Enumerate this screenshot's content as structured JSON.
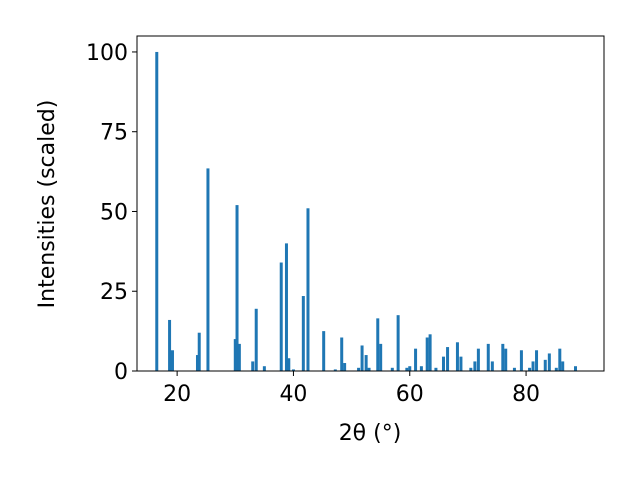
{
  "chart_data": {
    "type": "bar",
    "x_label": "2θ (°)",
    "y_label": "Intensities (scaled)",
    "color": "#1f77b4",
    "x": [
      16.5,
      18.7,
      19.2,
      23.5,
      23.8,
      25.3,
      30.0,
      30.3,
      30.7,
      33.0,
      33.6,
      35.0,
      37.9,
      38.8,
      39.2,
      40.0,
      41.7,
      42.5,
      45.2,
      47.2,
      48.3,
      48.8,
      51.2,
      51.8,
      52.5,
      53.0,
      54.5,
      55.0,
      57.0,
      58.0,
      59.5,
      60.0,
      61.0,
      62.0,
      63.0,
      63.5,
      64.5,
      65.8,
      66.5,
      68.2,
      68.8,
      70.5,
      71.2,
      71.8,
      73.5,
      74.2,
      76.0,
      76.5,
      78.0,
      79.2,
      80.6,
      81.2,
      81.8,
      83.3,
      84.0,
      85.2,
      85.8,
      86.3,
      88.5
    ],
    "values": [
      100,
      16,
      6.5,
      5,
      12,
      63.5,
      10,
      52,
      8.5,
      3,
      19.5,
      1.5,
      34,
      40,
      4,
      0.5,
      23.5,
      51,
      12.5,
      0.5,
      10.5,
      2.5,
      1,
      8,
      5,
      1,
      16.5,
      8.5,
      1,
      17.5,
      1,
      1.5,
      7,
      1.5,
      10.5,
      11.5,
      1,
      4.5,
      7.5,
      9,
      4.5,
      1,
      3,
      7,
      8.5,
      3,
      8.5,
      7,
      1,
      6.5,
      1,
      3,
      6.5,
      3.5,
      5.5,
      1,
      7,
      3,
      1.5
    ],
    "xlim": [
      13.1,
      93.4
    ],
    "ylim": [
      0,
      105
    ],
    "xticks": [
      20,
      40,
      60,
      80
    ],
    "yticks": [
      0,
      25,
      50,
      75,
      100
    ]
  }
}
